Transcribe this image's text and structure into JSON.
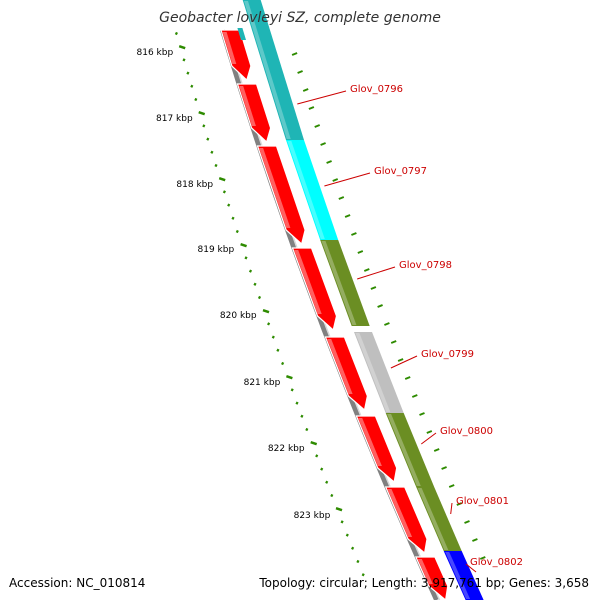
{
  "title": "Geobacter lovleyi SZ, complete genome",
  "footer": {
    "accession": "Accession: NC_010814",
    "topology": "Topology: circular; Length: 3,917,761 bp; Genes: 3,658"
  },
  "ticks": [
    "816 kbp",
    "817 kbp",
    "818 kbp",
    "819 kbp",
    "820 kbp",
    "821 kbp",
    "822 kbp",
    "823 kbp"
  ],
  "genes": [
    {
      "label": "Glov_0796",
      "category_color": "#1fb5b5"
    },
    {
      "label": "Glov_0797",
      "category_color": "#00ffff"
    },
    {
      "label": "Glov_0798",
      "category_color": "#6b8e23"
    },
    {
      "label": "Glov_0799",
      "category_color": "#bfbfbf"
    },
    {
      "label": "Glov_0800",
      "category_color": "#6b8e23"
    },
    {
      "label": "Glov_0801",
      "category_color": "#6b8e23"
    },
    {
      "label": "Glov_0802",
      "category_color": "#0000ff"
    }
  ],
  "colors": {
    "cds": "#ff0000",
    "backbone": "#808080",
    "tick": "#2e8b00",
    "label": "#cc0000"
  }
}
